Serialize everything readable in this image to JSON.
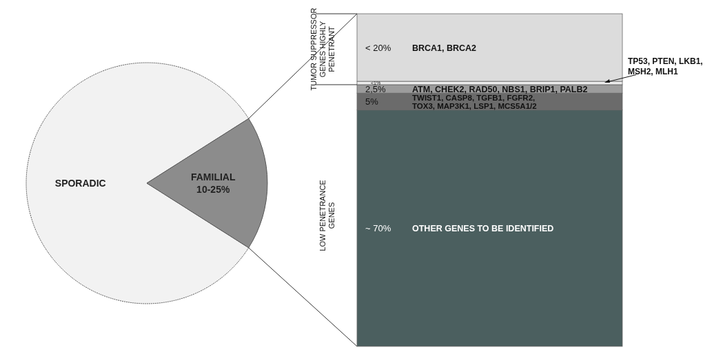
{
  "chart_data": [
    {
      "type": "pie",
      "categories": [
        "SPORADIC",
        "FAMILIAL 10-25%"
      ],
      "values": [
        82,
        18
      ],
      "colors": [
        "#f2f2f2",
        "#8c8c8c"
      ]
    },
    {
      "type": "bar",
      "stacked": true,
      "categories": [
        null
      ],
      "annotations": [
        "TUMOR SUPPRESSOR GENES HIGHLY PENETRANT",
        "LOW PENETRANCE GENES"
      ],
      "series": [
        {
          "name": "OTHER GENES TO BE IDENTIFIED",
          "color": "#4b5f5f",
          "values": [
            70
          ],
          "value_labels": [
            "~ 70%"
          ]
        },
        {
          "name": "TWIST1, CASP8, TGFB1, FGFR2, TOX3, MAP3K1, LSP1, MCS5A1/2",
          "color": "#6b6b6b",
          "values": [
            5
          ],
          "value_labels": [
            "5%"
          ]
        },
        {
          "name": "ATM, CHEK2, RAD50, NBS1, BRIP1, PALB2",
          "color": "#9c9c9c",
          "values": [
            2.5
          ],
          "value_labels": [
            "2,5%"
          ]
        },
        {
          "name": "TP53, PTEN, LKB1, MSH2, MLH1",
          "color": "#ececec",
          "values": [
            1
          ],
          "value_labels": [
            "<1%"
          ]
        },
        {
          "name": "BRCA1, BRCA2",
          "color": "#dcdcdc",
          "values": [
            20
          ],
          "value_labels": [
            "< 20%"
          ]
        }
      ]
    }
  ]
}
